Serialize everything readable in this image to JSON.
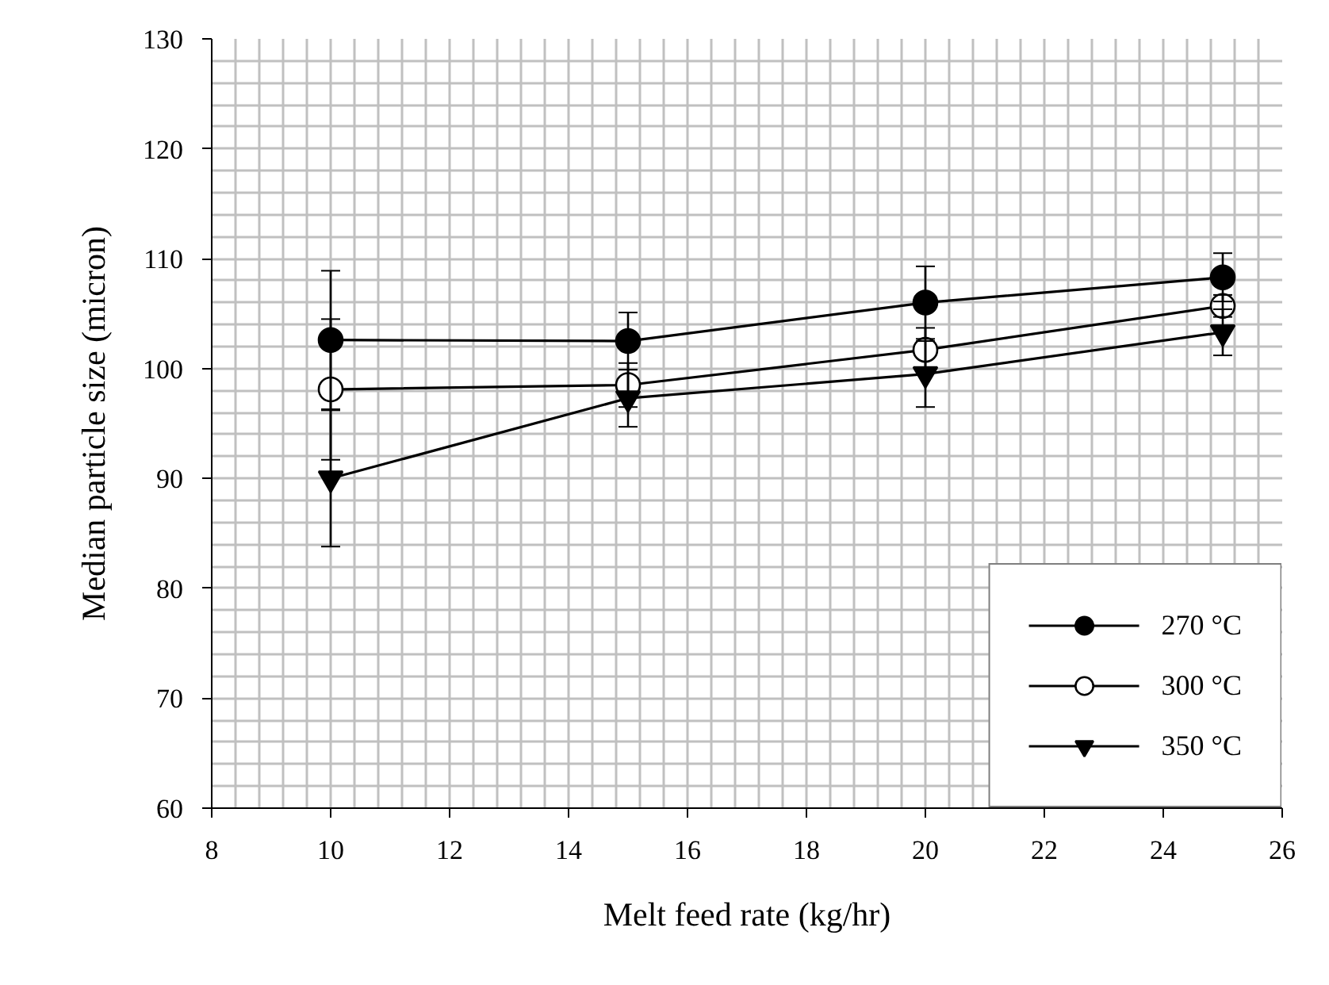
{
  "chart_data": {
    "type": "line",
    "xlabel": "Melt feed rate (kg/hr)",
    "ylabel": "Median particle size (micron)",
    "x": [
      10,
      15,
      20,
      25
    ],
    "xlim": [
      8,
      26
    ],
    "xticks": [
      8,
      10,
      12,
      14,
      16,
      18,
      20,
      22,
      24,
      26
    ],
    "ylim": [
      60,
      130
    ],
    "yticks": [
      60,
      70,
      80,
      90,
      100,
      110,
      120,
      130
    ],
    "grid": true,
    "legend": "bottom right",
    "line_style": "solid",
    "series": [
      {
        "name": "270 °C",
        "color": "#000000",
        "marker": "circle",
        "values": [
          102.6,
          102.5,
          106.0,
          108.3
        ],
        "errors": [
          6.3,
          2.6,
          3.3,
          2.2
        ]
      },
      {
        "name": "300 °C",
        "color": "#000000",
        "marker": "open_circle",
        "values": [
          98.1,
          98.5,
          101.7,
          105.7
        ],
        "errors": [
          6.4,
          2.0,
          2.0,
          1.0
        ]
      },
      {
        "name": "350 °C",
        "color": "#000000",
        "marker": "triangle_down",
        "values": [
          90.0,
          97.3,
          99.5,
          103.3
        ],
        "errors": [
          6.2,
          2.6,
          3.0,
          2.1
        ]
      }
    ]
  }
}
